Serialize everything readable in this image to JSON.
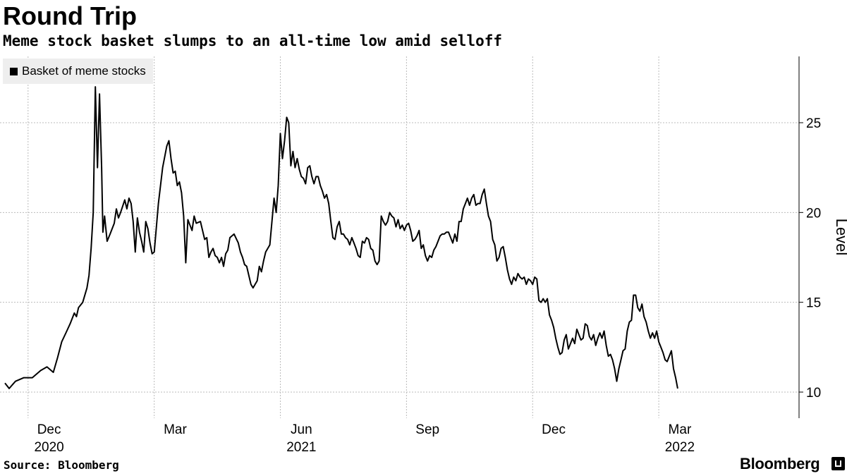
{
  "chart_data": {
    "type": "line",
    "title": "Round Trip",
    "subtitle": "Meme stock basket slumps to an all-time low amid selloff",
    "ylabel": "Level",
    "xlabel": "",
    "ylim": [
      8.5,
      29
    ],
    "yticks": [
      10,
      15,
      20,
      25
    ],
    "grid": true,
    "legend_position": "top-left",
    "x_ticks": [
      {
        "label": "Dec",
        "year": "2020",
        "t": 0.5
      },
      {
        "label": "Mar",
        "year": "",
        "t": 3.5
      },
      {
        "label": "Jun",
        "year": "2021",
        "t": 6.5
      },
      {
        "label": "Sep",
        "year": "",
        "t": 9.5
      },
      {
        "label": "Dec",
        "year": "",
        "t": 12.5
      },
      {
        "label": "Mar",
        "year": "2022",
        "t": 15.5
      }
    ],
    "x_range": [
      -0.55,
      17.95
    ],
    "series": [
      {
        "name": "Basket of meme stocks",
        "points": [
          [
            -0.55,
            10.5
          ],
          [
            -0.45,
            10.2
          ],
          [
            -0.3,
            10.6
          ],
          [
            -0.1,
            10.8
          ],
          [
            0.1,
            10.8
          ],
          [
            0.3,
            11.2
          ],
          [
            0.45,
            11.4
          ],
          [
            0.6,
            11.1
          ],
          [
            0.7,
            11.9
          ],
          [
            0.8,
            12.8
          ],
          [
            0.9,
            13.3
          ],
          [
            1.0,
            13.8
          ],
          [
            1.1,
            14.4
          ],
          [
            1.15,
            14.2
          ],
          [
            1.2,
            14.7
          ],
          [
            1.3,
            15.0
          ],
          [
            1.4,
            15.8
          ],
          [
            1.45,
            16.5
          ],
          [
            1.5,
            18.0
          ],
          [
            1.55,
            20.0
          ],
          [
            1.6,
            27.0
          ],
          [
            1.65,
            22.5
          ],
          [
            1.7,
            26.6
          ],
          [
            1.75,
            22.5
          ],
          [
            1.78,
            18.9
          ],
          [
            1.82,
            19.8
          ],
          [
            1.88,
            18.4
          ],
          [
            1.95,
            18.8
          ],
          [
            2.05,
            19.4
          ],
          [
            2.1,
            20.2
          ],
          [
            2.15,
            19.7
          ],
          [
            2.2,
            20.0
          ],
          [
            2.3,
            20.7
          ],
          [
            2.35,
            20.2
          ],
          [
            2.4,
            20.8
          ],
          [
            2.45,
            20.5
          ],
          [
            2.5,
            19.5
          ],
          [
            2.55,
            17.8
          ],
          [
            2.6,
            19.7
          ],
          [
            2.65,
            18.9
          ],
          [
            2.7,
            18.4
          ],
          [
            2.75,
            17.8
          ],
          [
            2.8,
            19.5
          ],
          [
            2.85,
            19.1
          ],
          [
            2.9,
            18.3
          ],
          [
            2.95,
            17.7
          ],
          [
            3.0,
            17.8
          ],
          [
            3.1,
            20.5
          ],
          [
            3.2,
            22.5
          ],
          [
            3.3,
            23.7
          ],
          [
            3.35,
            24.0
          ],
          [
            3.4,
            23.0
          ],
          [
            3.45,
            22.2
          ],
          [
            3.5,
            22.3
          ],
          [
            3.55,
            21.5
          ],
          [
            3.6,
            21.7
          ],
          [
            3.65,
            21.1
          ],
          [
            3.7,
            19.8
          ],
          [
            3.75,
            17.2
          ],
          [
            3.8,
            19.6
          ],
          [
            3.85,
            19.3
          ],
          [
            3.9,
            19.0
          ],
          [
            3.95,
            19.8
          ],
          [
            4.0,
            19.4
          ],
          [
            4.1,
            19.5
          ],
          [
            4.15,
            19.0
          ],
          [
            4.2,
            18.5
          ],
          [
            4.25,
            18.6
          ],
          [
            4.3,
            17.5
          ],
          [
            4.35,
            17.8
          ],
          [
            4.4,
            18.0
          ],
          [
            4.45,
            17.6
          ],
          [
            4.5,
            17.5
          ],
          [
            4.55,
            17.2
          ],
          [
            4.6,
            17.5
          ],
          [
            4.65,
            17.0
          ],
          [
            4.7,
            17.7
          ],
          [
            4.75,
            17.9
          ],
          [
            4.8,
            18.6
          ],
          [
            4.9,
            18.8
          ],
          [
            5.0,
            18.3
          ],
          [
            5.05,
            17.8
          ],
          [
            5.1,
            17.5
          ],
          [
            5.15,
            17.1
          ],
          [
            5.2,
            17.0
          ],
          [
            5.25,
            16.5
          ],
          [
            5.3,
            16.0
          ],
          [
            5.35,
            15.8
          ],
          [
            5.4,
            16.0
          ],
          [
            5.45,
            16.2
          ],
          [
            5.5,
            17.0
          ],
          [
            5.55,
            16.7
          ],
          [
            5.6,
            17.3
          ],
          [
            5.65,
            17.8
          ],
          [
            5.75,
            18.2
          ],
          [
            5.8,
            19.5
          ],
          [
            5.85,
            20.8
          ],
          [
            5.9,
            20.0
          ],
          [
            5.95,
            21.5
          ],
          [
            6.0,
            24.4
          ],
          [
            6.05,
            23.0
          ],
          [
            6.1,
            24.0
          ],
          [
            6.15,
            25.3
          ],
          [
            6.2,
            25.0
          ],
          [
            6.25,
            22.6
          ],
          [
            6.3,
            23.4
          ],
          [
            6.35,
            22.5
          ],
          [
            6.4,
            23.0
          ],
          [
            6.45,
            22.4
          ],
          [
            6.5,
            22.0
          ],
          [
            6.55,
            21.9
          ],
          [
            6.6,
            21.6
          ],
          [
            6.65,
            22.5
          ],
          [
            6.7,
            22.6
          ],
          [
            6.75,
            22.0
          ],
          [
            6.8,
            21.6
          ],
          [
            6.85,
            22.0
          ],
          [
            6.9,
            22.0
          ],
          [
            6.95,
            21.5
          ],
          [
            7.0,
            21.2
          ],
          [
            7.05,
            20.8
          ],
          [
            7.1,
            21.0
          ],
          [
            7.15,
            20.5
          ],
          [
            7.2,
            19.5
          ],
          [
            7.25,
            18.6
          ],
          [
            7.3,
            18.5
          ],
          [
            7.35,
            19.2
          ],
          [
            7.4,
            19.5
          ],
          [
            7.45,
            18.8
          ],
          [
            7.5,
            18.8
          ],
          [
            7.55,
            18.6
          ],
          [
            7.6,
            18.5
          ],
          [
            7.65,
            18.2
          ],
          [
            7.7,
            18.6
          ],
          [
            7.75,
            18.3
          ],
          [
            7.8,
            18.0
          ],
          [
            7.85,
            17.6
          ],
          [
            7.9,
            17.5
          ],
          [
            7.95,
            18.4
          ],
          [
            8.0,
            18.3
          ],
          [
            8.05,
            18.6
          ],
          [
            8.1,
            18.5
          ],
          [
            8.15,
            18.0
          ],
          [
            8.2,
            17.9
          ],
          [
            8.25,
            17.3
          ],
          [
            8.3,
            17.1
          ],
          [
            8.35,
            17.3
          ],
          [
            8.4,
            19.8
          ],
          [
            8.45,
            19.5
          ],
          [
            8.5,
            19.3
          ],
          [
            8.55,
            19.5
          ],
          [
            8.6,
            20.0
          ],
          [
            8.65,
            19.8
          ],
          [
            8.7,
            19.7
          ],
          [
            8.75,
            19.2
          ],
          [
            8.8,
            19.6
          ],
          [
            8.85,
            19.1
          ],
          [
            8.9,
            19.3
          ],
          [
            8.95,
            19.0
          ],
          [
            9.0,
            19.3
          ],
          [
            9.05,
            19.4
          ],
          [
            9.1,
            19.0
          ],
          [
            9.15,
            18.4
          ],
          [
            9.2,
            18.5
          ],
          [
            9.25,
            18.7
          ],
          [
            9.3,
            19.0
          ],
          [
            9.35,
            18.0
          ],
          [
            9.4,
            18.2
          ],
          [
            9.45,
            17.6
          ],
          [
            9.5,
            17.3
          ],
          [
            9.55,
            17.6
          ],
          [
            9.6,
            17.5
          ],
          [
            9.65,
            17.9
          ],
          [
            9.7,
            18.1
          ],
          [
            9.75,
            18.4
          ],
          [
            9.8,
            18.7
          ],
          [
            9.85,
            18.8
          ],
          [
            9.9,
            18.8
          ],
          [
            9.95,
            18.9
          ],
          [
            10.0,
            18.9
          ],
          [
            10.05,
            18.6
          ],
          [
            10.1,
            18.3
          ],
          [
            10.15,
            18.8
          ],
          [
            10.2,
            18.4
          ],
          [
            10.25,
            19.5
          ],
          [
            10.3,
            19.5
          ],
          [
            10.35,
            20.2
          ],
          [
            10.4,
            20.5
          ],
          [
            10.45,
            20.8
          ],
          [
            10.5,
            20.4
          ],
          [
            10.55,
            20.8
          ],
          [
            10.6,
            21.0
          ],
          [
            10.65,
            20.4
          ],
          [
            10.7,
            20.5
          ],
          [
            10.75,
            20.5
          ],
          [
            10.8,
            21.0
          ],
          [
            10.85,
            21.3
          ],
          [
            10.9,
            20.5
          ],
          [
            10.95,
            19.8
          ],
          [
            11.0,
            19.5
          ],
          [
            11.05,
            18.5
          ],
          [
            11.1,
            18.2
          ],
          [
            11.15,
            17.3
          ],
          [
            11.2,
            17.5
          ],
          [
            11.25,
            18.0
          ],
          [
            11.3,
            18.1
          ],
          [
            11.35,
            17.5
          ],
          [
            11.4,
            16.8
          ],
          [
            11.45,
            16.3
          ],
          [
            11.5,
            16.0
          ],
          [
            11.55,
            16.4
          ],
          [
            11.6,
            16.2
          ],
          [
            11.65,
            16.6
          ],
          [
            11.7,
            16.4
          ],
          [
            11.75,
            16.3
          ],
          [
            11.8,
            16.4
          ],
          [
            11.85,
            16.0
          ],
          [
            11.9,
            16.3
          ],
          [
            11.95,
            16.2
          ],
          [
            12.0,
            16.0
          ],
          [
            12.05,
            16.4
          ],
          [
            12.1,
            16.3
          ],
          [
            12.15,
            15.1
          ],
          [
            12.2,
            15.0
          ],
          [
            12.25,
            15.2
          ],
          [
            12.3,
            15.0
          ],
          [
            12.35,
            15.2
          ],
          [
            12.4,
            14.3
          ],
          [
            12.45,
            14.0
          ],
          [
            12.5,
            13.6
          ],
          [
            12.55,
            13.0
          ],
          [
            12.6,
            12.5
          ],
          [
            12.65,
            12.1
          ],
          [
            12.7,
            12.2
          ],
          [
            12.75,
            12.9
          ],
          [
            12.8,
            13.2
          ],
          [
            12.85,
            12.4
          ],
          [
            12.9,
            12.7
          ],
          [
            12.95,
            13.0
          ],
          [
            13.0,
            12.7
          ],
          [
            13.05,
            13.5
          ],
          [
            13.1,
            13.2
          ],
          [
            13.15,
            12.9
          ],
          [
            13.2,
            13.0
          ],
          [
            13.25,
            13.8
          ],
          [
            13.3,
            13.7
          ],
          [
            13.35,
            13.1
          ],
          [
            13.4,
            12.9
          ],
          [
            13.45,
            13.2
          ],
          [
            13.5,
            12.6
          ],
          [
            13.55,
            13.0
          ],
          [
            13.6,
            13.3
          ],
          [
            13.65,
            13.0
          ],
          [
            13.7,
            13.4
          ],
          [
            13.75,
            12.6
          ],
          [
            13.8,
            12.0
          ],
          [
            13.85,
            12.1
          ],
          [
            13.9,
            11.8
          ],
          [
            13.95,
            11.3
          ],
          [
            14.0,
            10.6
          ],
          [
            14.05,
            11.3
          ],
          [
            14.1,
            11.8
          ],
          [
            14.15,
            12.3
          ],
          [
            14.2,
            12.4
          ],
          [
            14.25,
            13.4
          ],
          [
            14.3,
            13.9
          ],
          [
            14.35,
            14.0
          ],
          [
            14.4,
            15.4
          ],
          [
            14.45,
            15.4
          ],
          [
            14.5,
            14.7
          ],
          [
            14.55,
            14.5
          ],
          [
            14.6,
            14.9
          ],
          [
            14.65,
            14.2
          ],
          [
            14.7,
            13.9
          ],
          [
            14.75,
            13.4
          ],
          [
            14.8,
            13.0
          ],
          [
            14.85,
            13.3
          ],
          [
            14.9,
            13.0
          ],
          [
            14.95,
            13.4
          ],
          [
            15.0,
            12.8
          ],
          [
            15.05,
            12.5
          ],
          [
            15.1,
            12.2
          ],
          [
            15.15,
            11.8
          ],
          [
            15.2,
            11.7
          ],
          [
            15.25,
            12.0
          ],
          [
            15.3,
            12.3
          ],
          [
            15.35,
            11.3
          ],
          [
            15.4,
            10.8
          ],
          [
            15.45,
            10.2
          ]
        ]
      }
    ]
  },
  "axis_label": "Level",
  "legend": {
    "label": "Basket of meme stocks"
  },
  "footer": {
    "source": "Source: Bloomberg",
    "brand": "Bloomberg"
  },
  "colors": {
    "line": "#000000",
    "grid": "#bbbbbb",
    "legend_bg": "#eeeeee"
  }
}
